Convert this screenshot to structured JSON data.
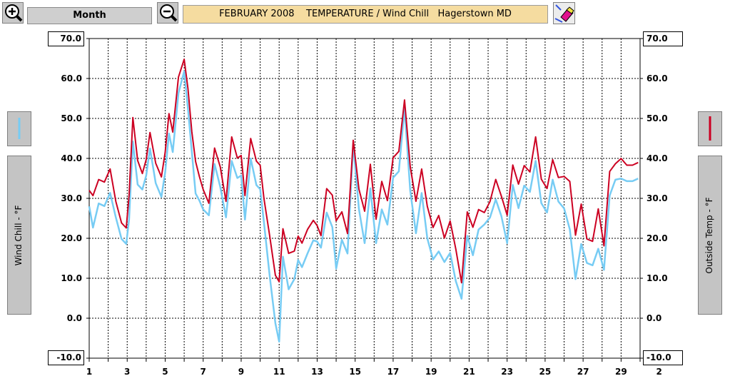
{
  "toolbar": {
    "zoom_in_icon": "magnifier-plus-icon",
    "period_label": "Month",
    "zoom_out_icon": "magnifier-minus-icon",
    "title": "FEBRUARY 2008    TEMPERATURE / Wind Chill   Hagerstown MD",
    "clear_icon": "eraser-icon"
  },
  "left_axis": {
    "top_value": "70.0",
    "bottom_value": "-10.0",
    "label": "Wind Chill - °F"
  },
  "right_axis": {
    "top_value": "70.0",
    "bottom_value": "-10.0",
    "label": "Outside Temp - °F"
  },
  "colors": {
    "outside_temp": "#cc0022",
    "wind_chill": "#77ccf4",
    "title_background": "#f5dca0"
  },
  "chart_data": {
    "type": "line",
    "title": "FEBRUARY 2008    TEMPERATURE / Wind Chill   Hagerstown MD",
    "xlabel": "",
    "ylabel_left": "Wind Chill - °F",
    "ylabel_right": "Outside Temp - °F",
    "xlim": [
      1,
      30
    ],
    "ylim": [
      -10,
      70
    ],
    "grid": true,
    "x_ticks": [
      "1",
      "3",
      "5",
      "7",
      "9",
      "11",
      "13",
      "15",
      "17",
      "19",
      "21",
      "23",
      "25",
      "27",
      "29",
      "2"
    ],
    "y_ticks": [
      "70.0",
      "60.0",
      "50.0",
      "40.0",
      "30.0",
      "20.0",
      "10.0",
      "0.0",
      "-10.0"
    ],
    "series": [
      {
        "name": "Outside Temp - °F",
        "color": "#cc0022",
        "x": [
          1.0,
          1.2,
          1.5,
          1.8,
          2.1,
          2.4,
          2.7,
          2.95,
          3.1,
          3.3,
          3.55,
          3.8,
          4.0,
          4.2,
          4.5,
          4.8,
          5.0,
          5.2,
          5.4,
          5.7,
          6.0,
          6.2,
          6.4,
          6.6,
          6.8,
          7.0,
          7.3,
          7.6,
          7.9,
          8.2,
          8.5,
          8.8,
          9.0,
          9.2,
          9.5,
          9.8,
          10.0,
          10.2,
          10.5,
          10.8,
          11.0,
          11.2,
          11.5,
          11.8,
          12.0,
          12.2,
          12.5,
          12.8,
          13.0,
          13.2,
          13.5,
          13.8,
          14.0,
          14.3,
          14.6,
          14.9,
          15.2,
          15.5,
          15.8,
          16.1,
          16.4,
          16.7,
          17.0,
          17.3,
          17.6,
          17.9,
          18.2,
          18.5,
          18.8,
          19.1,
          19.4,
          19.7,
          20.0,
          20.3,
          20.6,
          20.9,
          21.2,
          21.5,
          21.8,
          22.1,
          22.4,
          22.7,
          23.0,
          23.3,
          23.6,
          23.9,
          24.2,
          24.5,
          24.8,
          25.1,
          25.4,
          25.7,
          26.0,
          26.3,
          26.6,
          26.9,
          27.2,
          27.5,
          27.8,
          28.1,
          28.4,
          28.7,
          29.0,
          29.3,
          29.6,
          29.9
        ],
        "values": [
          32,
          30,
          34,
          34,
          38,
          30,
          24,
          22,
          30,
          50,
          40,
          37,
          40,
          46,
          38,
          35,
          42,
          52,
          47,
          60,
          64,
          57,
          47,
          40,
          36,
          32,
          28,
          42,
          38,
          30,
          46,
          40,
          40,
          30,
          45,
          40,
          39,
          30,
          20,
          10,
          9,
          23,
          17,
          17,
          20,
          18,
          22,
          25,
          24,
          21,
          32,
          30,
          24,
          27,
          22,
          45,
          32,
          26,
          38,
          25,
          35,
          30,
          40,
          41,
          54,
          38,
          30,
          38,
          28,
          22,
          25,
          20,
          25,
          18,
          9,
          26,
          22,
          27,
          27,
          30,
          35,
          30,
          25,
          38,
          34,
          39,
          37,
          45,
          34,
          32,
          40,
          36,
          36,
          34,
          20,
          28,
          20,
          20,
          28,
          18,
          36,
          38,
          40,
          39,
          39,
          39
        ]
      },
      {
        "name": "Wind Chill - °F",
        "color": "#77ccf4",
        "x": [
          1.0,
          1.2,
          1.5,
          1.8,
          2.1,
          2.4,
          2.7,
          2.95,
          3.1,
          3.3,
          3.55,
          3.8,
          4.0,
          4.2,
          4.5,
          4.8,
          5.0,
          5.2,
          5.4,
          5.7,
          6.0,
          6.2,
          6.4,
          6.6,
          6.8,
          7.0,
          7.3,
          7.6,
          7.9,
          8.2,
          8.5,
          8.8,
          9.0,
          9.2,
          9.5,
          9.8,
          10.0,
          10.2,
          10.5,
          10.8,
          11.0,
          11.2,
          11.5,
          11.8,
          12.0,
          12.2,
          12.5,
          12.8,
          13.0,
          13.2,
          13.5,
          13.8,
          14.0,
          14.3,
          14.6,
          14.9,
          15.2,
          15.5,
          15.8,
          16.1,
          16.4,
          16.7,
          17.0,
          17.3,
          17.6,
          17.9,
          18.2,
          18.5,
          18.8,
          19.1,
          19.4,
          19.7,
          20.0,
          20.3,
          20.6,
          20.9,
          21.2,
          21.5,
          21.8,
          22.1,
          22.4,
          22.7,
          23.0,
          23.3,
          23.6,
          23.9,
          24.2,
          24.5,
          24.8,
          25.1,
          25.4,
          25.7,
          26.0,
          26.3,
          26.6,
          26.9,
          27.2,
          27.5,
          27.8,
          28.1,
          28.4,
          28.7,
          29.0,
          29.3,
          29.6,
          29.9
        ],
        "values": [
          28,
          22,
          28,
          28,
          32,
          26,
          20,
          18,
          24,
          44,
          34,
          33,
          36,
          42,
          33,
          30,
          37,
          47,
          42,
          56,
          61,
          52,
          42,
          32,
          30,
          27,
          25,
          38,
          33,
          26,
          40,
          35,
          35,
          24,
          40,
          34,
          33,
          24,
          10,
          -2,
          -6,
          16,
          8,
          10,
          14,
          12,
          16,
          20,
          20,
          18,
          26,
          22,
          12,
          20,
          17,
          44,
          27,
          18,
          32,
          19,
          28,
          24,
          35,
          36,
          52,
          32,
          22,
          32,
          20,
          14,
          16,
          14,
          17,
          10,
          5,
          20,
          15,
          22,
          24,
          26,
          30,
          25,
          18,
          33,
          28,
          34,
          32,
          39,
          28,
          26,
          35,
          30,
          28,
          22,
          9,
          18,
          14,
          14,
          18,
          12,
          30,
          34,
          35,
          35,
          35,
          35
        ]
      }
    ]
  }
}
